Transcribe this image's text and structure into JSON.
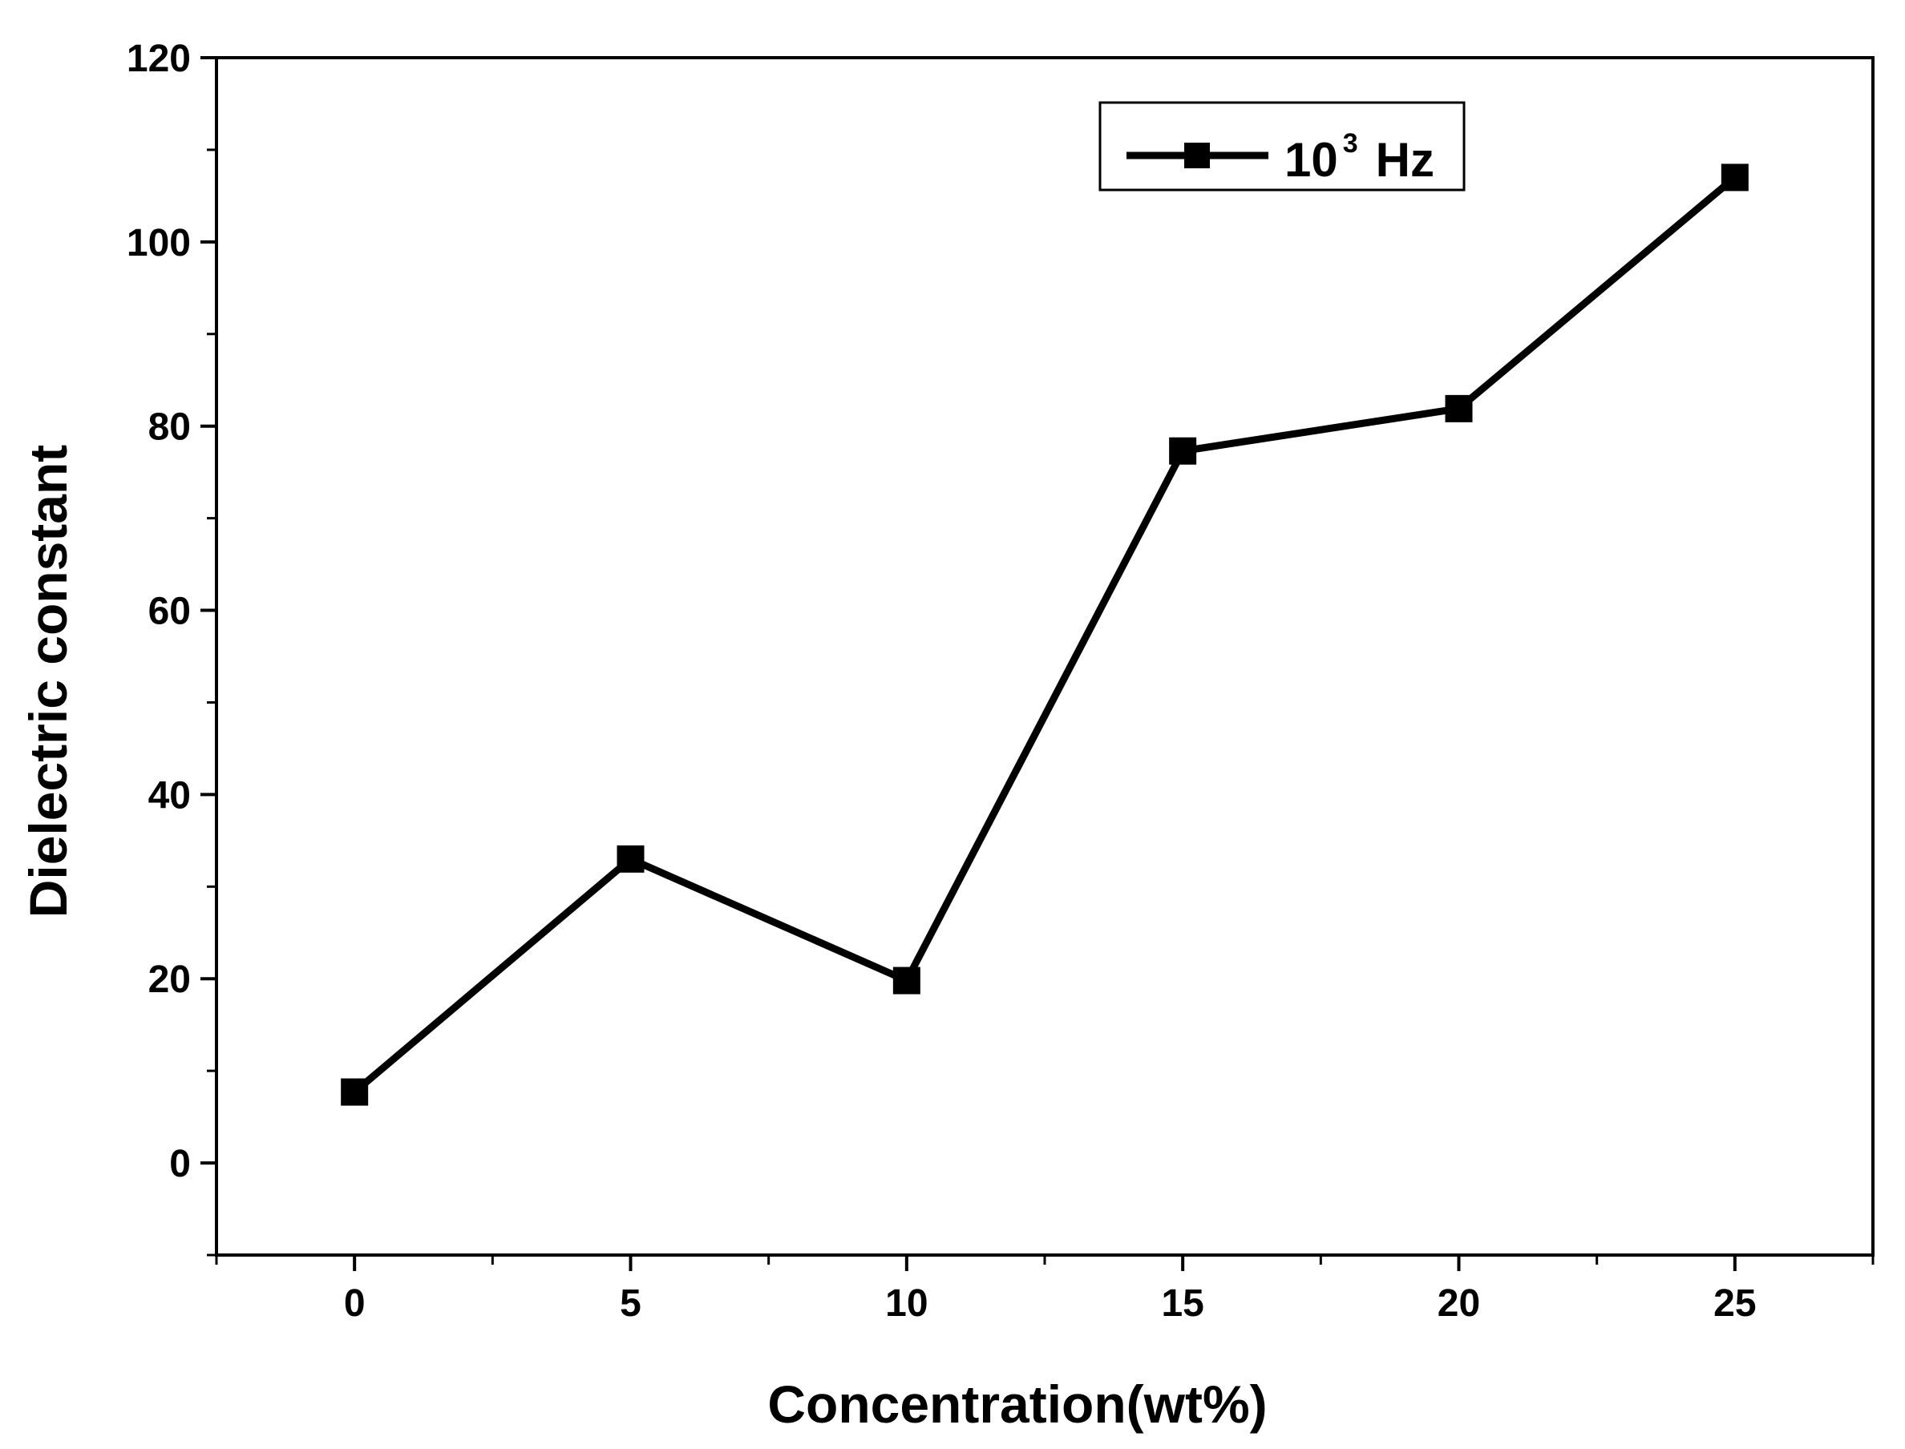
{
  "chart_data": {
    "type": "line",
    "title": "",
    "xlabel": "Concentration(wt%)",
    "ylabel": "Dielectric constant",
    "xlim": [
      -2.5,
      27.5
    ],
    "ylim": [
      -10,
      120
    ],
    "x_ticks": [
      0,
      5,
      10,
      15,
      20,
      25
    ],
    "y_ticks": [
      0,
      20,
      40,
      60,
      80,
      100,
      120
    ],
    "grid": false,
    "legend_position": "top-right",
    "series": [
      {
        "name_base": "10",
        "name_sup": "3",
        "name_unit": "Hz",
        "color": "#000000",
        "marker": "square",
        "x": [
          0,
          5,
          10,
          15,
          20,
          25
        ],
        "y": [
          7.7,
          33.0,
          19.8,
          77.3,
          81.9,
          107.0
        ]
      }
    ]
  }
}
